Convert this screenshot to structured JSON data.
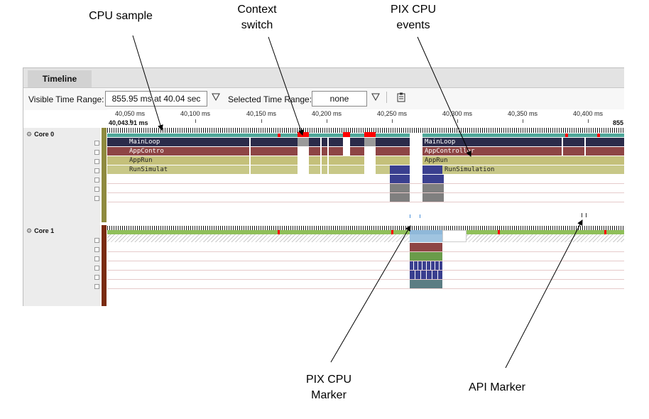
{
  "callouts": {
    "cpu_sample": "CPU sample",
    "context_switch": "Context\nswitch",
    "pix_events": "PIX CPU\nevents",
    "pix_marker": "PIX CPU\nMarker",
    "api_marker": "API Marker"
  },
  "window": {
    "tab_title": "Timeline"
  },
  "toolbar": {
    "visible_range_label": "Visible Time Range:",
    "visible_range_value": "855.95 ms at 40.04 sec",
    "filter_icon": "funnel-icon",
    "selected_range_label": "Selected Time Range:",
    "selected_range_value": "none",
    "clipboard_icon": "clipboard-icon"
  },
  "ruler": {
    "ticks": [
      "40,050 ms",
      "40,100 ms",
      "40,150 ms",
      "40,200 ms",
      "40,250 ms",
      "40,300 ms",
      "40,350 ms",
      "40,400 ms"
    ],
    "current_time": "40,043.91 ms",
    "end_time": "855"
  },
  "cores": [
    {
      "label": "Core 0",
      "color": "#8f8a3f"
    },
    {
      "label": "Core 1",
      "color": "#7a2b10"
    }
  ],
  "events": {
    "mainloop": "MainLoop",
    "appcontroller_short": "AppContro",
    "apprun": "AppRun",
    "runsimulation_short": "RunSimulat",
    "mainloop_2": "MainLoop",
    "appcontroller": "AppController",
    "apprun_2": "AppRun",
    "runsimulation": "RunSimulation"
  },
  "colors": {
    "mainloop": "#2b2b4a",
    "appcontroller": "#8e4545",
    "apprun": "#c4c07a",
    "runsim": "#c8c888",
    "teal": "#4fa89a",
    "green": "#8fbf5a",
    "red": "#ff0000",
    "blue": "#3a3f8f",
    "gray": "#7f7f7f"
  }
}
